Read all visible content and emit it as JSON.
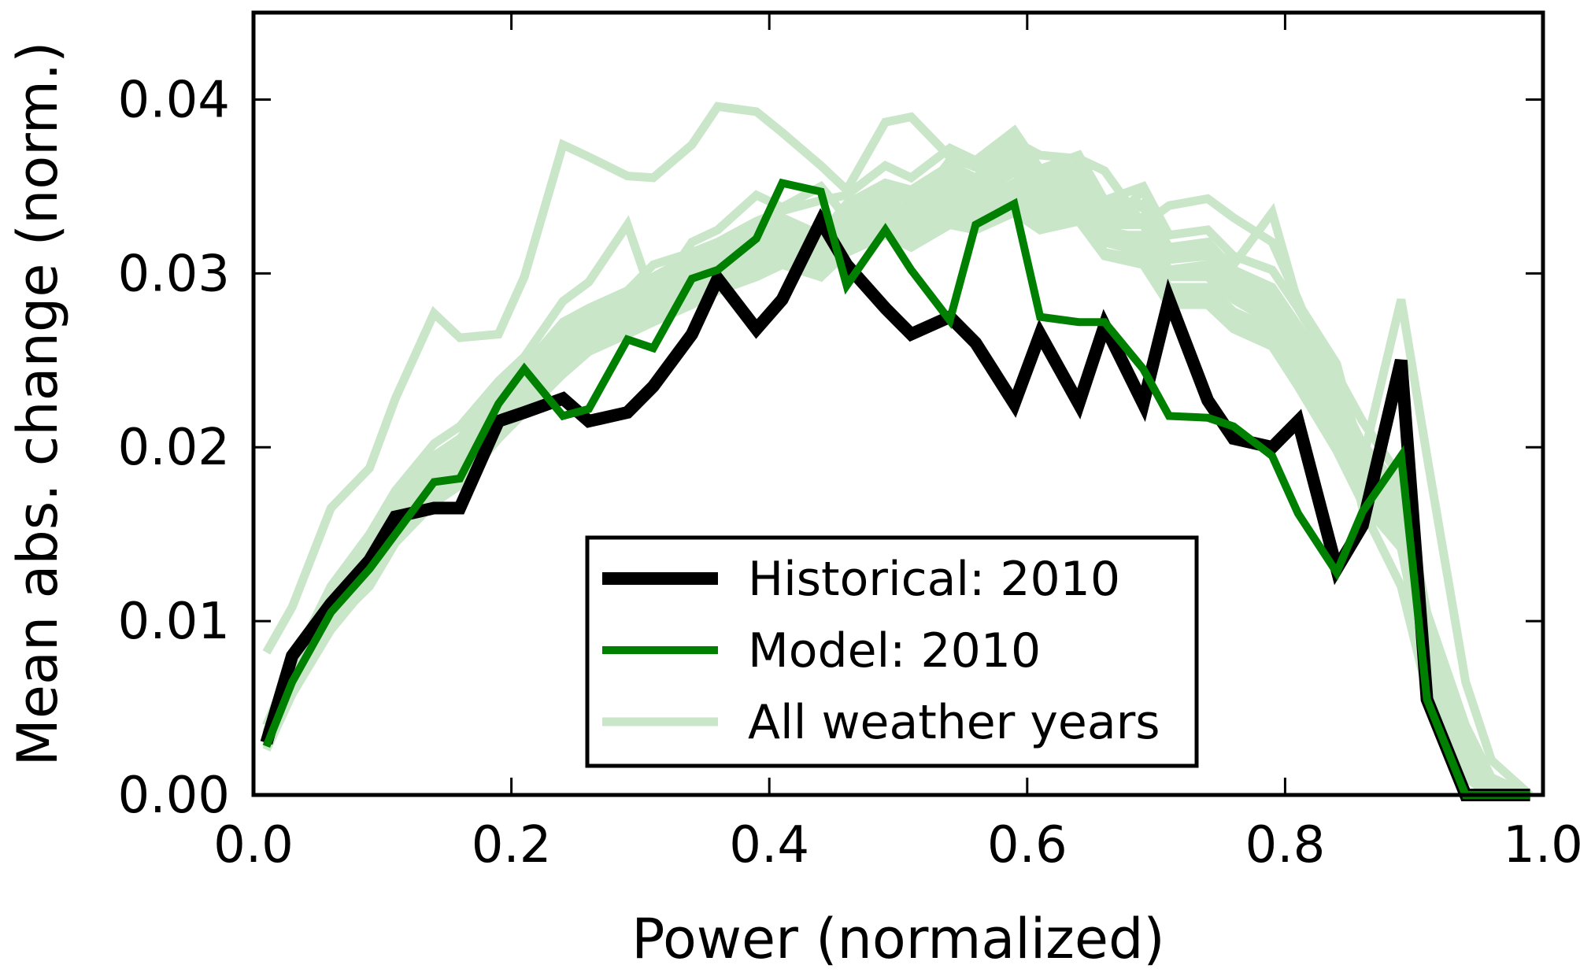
{
  "chart_data": {
    "type": "line",
    "title": "",
    "xlabel": "Power (normalized)",
    "ylabel": "Mean abs. change (norm.)",
    "xlim": [
      0.0,
      1.0
    ],
    "ylim": [
      0.0,
      0.045
    ],
    "xticks": [
      0.0,
      0.2,
      0.4,
      0.6,
      0.8,
      1.0
    ],
    "xtick_labels": [
      "0.0",
      "0.2",
      "0.4",
      "0.6",
      "0.8",
      "1.0"
    ],
    "yticks": [
      0.0,
      0.01,
      0.02,
      0.03,
      0.04
    ],
    "ytick_labels": [
      "0.00",
      "0.01",
      "0.02",
      "0.03",
      "0.04"
    ],
    "grid": false,
    "legend_position": "lower-center",
    "x": [
      0.01,
      0.03,
      0.06,
      0.09,
      0.11,
      0.14,
      0.16,
      0.19,
      0.21,
      0.24,
      0.26,
      0.29,
      0.31,
      0.34,
      0.36,
      0.39,
      0.41,
      0.44,
      0.46,
      0.49,
      0.51,
      0.54,
      0.56,
      0.59,
      0.61,
      0.64,
      0.66,
      0.69,
      0.71,
      0.74,
      0.76,
      0.79,
      0.81,
      0.84,
      0.86,
      0.89,
      0.91,
      0.94,
      0.96,
      0.99
    ],
    "series": [
      {
        "name": "Historical: 2010",
        "color": "#000000",
        "values": [
          0.003,
          0.008,
          0.011,
          0.0135,
          0.016,
          0.0165,
          0.0165,
          0.0215,
          0.022,
          0.0228,
          0.0215,
          0.022,
          0.0235,
          0.0265,
          0.0297,
          0.0268,
          0.0285,
          0.033,
          0.0305,
          0.028,
          0.0265,
          0.0275,
          0.026,
          0.0225,
          0.0265,
          0.0225,
          0.027,
          0.0225,
          0.0285,
          0.0227,
          0.0205,
          0.02,
          0.0215,
          0.013,
          0.0155,
          0.025,
          0.0055,
          0.0,
          0.0,
          0.0
        ]
      },
      {
        "name": "Model: 2010",
        "color": "#008000",
        "values": [
          0.0028,
          0.0065,
          0.0105,
          0.013,
          0.015,
          0.018,
          0.0182,
          0.0225,
          0.0245,
          0.0218,
          0.0222,
          0.0262,
          0.0257,
          0.0297,
          0.0302,
          0.032,
          0.0352,
          0.0347,
          0.0293,
          0.0325,
          0.0302,
          0.0273,
          0.0328,
          0.034,
          0.0275,
          0.0272,
          0.0272,
          0.0245,
          0.0218,
          0.0217,
          0.0212,
          0.0195,
          0.0162,
          0.0128,
          0.0163,
          0.0195,
          0.0055,
          0.0,
          0.0,
          0.0
        ]
      },
      {
        "name": "All weather years",
        "color": "#c9e6c9",
        "style": "background-ensemble",
        "lines": [
          [
            0.0082,
            0.0108,
            0.0165,
            0.0188,
            0.0228,
            0.0277,
            0.0263,
            0.0265,
            0.0298,
            0.0374,
            0.0367,
            0.0356,
            0.0355,
            0.0374,
            0.0396,
            0.0393,
            0.0381,
            0.0362,
            0.0348,
            0.0387,
            0.039,
            0.0367,
            0.0361,
            0.0376,
            0.0368,
            0.0366,
            0.0359,
            0.0328,
            0.0339,
            0.0343,
            0.0332,
            0.0318,
            0.0285,
            0.023,
            0.0165,
            0.012,
            0.006,
            0.001,
            0.0,
            0.0
          ],
          [
            0.004,
            0.0075,
            0.012,
            0.015,
            0.0175,
            0.0202,
            0.0212,
            0.0238,
            0.0252,
            0.0284,
            0.0295,
            0.0328,
            0.0285,
            0.0318,
            0.0325,
            0.0345,
            0.0338,
            0.035,
            0.0332,
            0.0342,
            0.0335,
            0.0365,
            0.0352,
            0.0362,
            0.0348,
            0.0355,
            0.0325,
            0.0348,
            0.031,
            0.0315,
            0.0305,
            0.0335,
            0.0283,
            0.0248,
            0.0192,
            0.0285,
            0.0195,
            0.0065,
            0.002,
            0.0
          ],
          [
            0.0035,
            0.007,
            0.0115,
            0.0142,
            0.0168,
            0.0195,
            0.0205,
            0.0232,
            0.0246,
            0.0272,
            0.028,
            0.029,
            0.0305,
            0.0312,
            0.0318,
            0.033,
            0.0336,
            0.0342,
            0.0345,
            0.0362,
            0.0355,
            0.0372,
            0.0365,
            0.0382,
            0.036,
            0.0368,
            0.0342,
            0.035,
            0.0322,
            0.0325,
            0.031,
            0.0302,
            0.028,
            0.0242,
            0.0215,
            0.0182,
            0.0105,
            0.004,
            0.001,
            0.0
          ],
          [
            0.0032,
            0.0068,
            0.011,
            0.0138,
            0.0162,
            0.0188,
            0.0198,
            0.0225,
            0.024,
            0.0262,
            0.0275,
            0.0285,
            0.0292,
            0.0305,
            0.031,
            0.0322,
            0.0326,
            0.0318,
            0.0335,
            0.0345,
            0.0342,
            0.0355,
            0.0348,
            0.0365,
            0.0352,
            0.0358,
            0.0335,
            0.0332,
            0.0308,
            0.031,
            0.0295,
            0.0285,
            0.0262,
            0.0225,
            0.0195,
            0.0168,
            0.009,
            0.003,
            0.0,
            0.0
          ],
          [
            0.003,
            0.0065,
            0.0105,
            0.0132,
            0.0158,
            0.0182,
            0.0192,
            0.0218,
            0.0232,
            0.0255,
            0.0268,
            0.0278,
            0.0285,
            0.0296,
            0.0302,
            0.0312,
            0.0318,
            0.031,
            0.0325,
            0.0335,
            0.0332,
            0.0345,
            0.034,
            0.0352,
            0.034,
            0.0348,
            0.0325,
            0.032,
            0.0298,
            0.0298,
            0.0285,
            0.0275,
            0.0252,
            0.0215,
            0.0185,
            0.0158,
            0.0082,
            0.0025,
            0.0,
            0.0
          ],
          [
            0.0028,
            0.006,
            0.0098,
            0.0125,
            0.015,
            0.0175,
            0.0185,
            0.021,
            0.0225,
            0.0248,
            0.026,
            0.027,
            0.0278,
            0.0288,
            0.0295,
            0.0302,
            0.031,
            0.0302,
            0.0318,
            0.0328,
            0.0322,
            0.0335,
            0.0332,
            0.0342,
            0.0332,
            0.0338,
            0.0318,
            0.0312,
            0.029,
            0.0288,
            0.0275,
            0.0265,
            0.0242,
            0.0205,
            0.0175,
            0.0148,
            0.0075,
            0.002,
            0.0,
            0.0
          ],
          [
            0.0026,
            0.0058,
            0.0095,
            0.0122,
            0.0148,
            0.0172,
            0.0182,
            0.0205,
            0.022,
            0.0242,
            0.0255,
            0.0265,
            0.0272,
            0.0282,
            0.029,
            0.0298,
            0.0305,
            0.0298,
            0.0312,
            0.0322,
            0.0315,
            0.0328,
            0.0325,
            0.0335,
            0.0325,
            0.033,
            0.031,
            0.0305,
            0.0282,
            0.0282,
            0.0268,
            0.0258,
            0.0235,
            0.0198,
            0.0168,
            0.0142,
            0.007,
            0.0018,
            0.0,
            0.0
          ],
          [
            0.0036,
            0.0072,
            0.0112,
            0.014,
            0.0165,
            0.019,
            0.02,
            0.0228,
            0.0242,
            0.0268,
            0.0278,
            0.0288,
            0.0298,
            0.031,
            0.0315,
            0.0326,
            0.0332,
            0.0322,
            0.034,
            0.0352,
            0.0348,
            0.0362,
            0.0355,
            0.0372,
            0.0358,
            0.0362,
            0.034,
            0.034,
            0.0315,
            0.0318,
            0.0302,
            0.0292,
            0.027,
            0.0232,
            0.0202,
            0.0175,
            0.0098,
            0.0035,
            0.0005,
            0.0
          ],
          [
            0.0029,
            0.0062,
            0.01,
            0.0128,
            0.0152,
            0.0178,
            0.0188,
            0.0212,
            0.0228,
            0.0252,
            0.0262,
            0.0272,
            0.028,
            0.0292,
            0.0298,
            0.0308,
            0.0315,
            0.0305,
            0.0322,
            0.033,
            0.0325,
            0.034,
            0.0335,
            0.0348,
            0.0335,
            0.0342,
            0.0322,
            0.0315,
            0.0292,
            0.0292,
            0.0278,
            0.0268,
            0.0245,
            0.0208,
            0.0178,
            0.0152,
            0.0078,
            0.0022,
            0.0,
            0.0
          ],
          [
            0.0033,
            0.0066,
            0.0108,
            0.0135,
            0.016,
            0.0185,
            0.0195,
            0.022,
            0.0235,
            0.0258,
            0.0272,
            0.0282,
            0.0288,
            0.0302,
            0.0306,
            0.0318,
            0.0322,
            0.0315,
            0.033,
            0.0338,
            0.0338,
            0.0348,
            0.0345,
            0.0358,
            0.0345,
            0.0352,
            0.0328,
            0.0328,
            0.0302,
            0.0305,
            0.029,
            0.028,
            0.0258,
            0.022,
            0.019,
            0.0162,
            0.0085,
            0.0028,
            0.0,
            0.0
          ],
          [
            0.0031,
            0.0064,
            0.0102,
            0.013,
            0.0155,
            0.018,
            0.019,
            0.0215,
            0.023,
            0.0255,
            0.0265,
            0.0275,
            0.0282,
            0.0298,
            0.0302,
            0.0315,
            0.032,
            0.0312,
            0.0328,
            0.0332,
            0.033,
            0.0342,
            0.034,
            0.0352,
            0.034,
            0.0345,
            0.0322,
            0.0322,
            0.0298,
            0.03,
            0.0285,
            0.0272,
            0.025,
            0.0212,
            0.0182,
            0.0155,
            0.0078,
            0.0022,
            0.0,
            0.0
          ],
          [
            0.0034,
            0.0068,
            0.011,
            0.0138,
            0.0162,
            0.0188,
            0.0198,
            0.0222,
            0.0238,
            0.0262,
            0.0272,
            0.0282,
            0.0292,
            0.0305,
            0.0308,
            0.032,
            0.0326,
            0.0318,
            0.0335,
            0.0345,
            0.0342,
            0.0352,
            0.0348,
            0.0365,
            0.035,
            0.0355,
            0.0332,
            0.0332,
            0.0308,
            0.031,
            0.0295,
            0.0285,
            0.026,
            0.0222,
            0.0192,
            0.0165,
            0.009,
            0.003,
            0.0,
            0.0
          ],
          [
            0.003,
            0.006,
            0.0098,
            0.012,
            0.0145,
            0.0168,
            0.0178,
            0.0205,
            0.022,
            0.0245,
            0.0255,
            0.0268,
            0.0275,
            0.0285,
            0.0292,
            0.03,
            0.0306,
            0.0298,
            0.0315,
            0.0325,
            0.0318,
            0.033,
            0.0328,
            0.034,
            0.0328,
            0.0335,
            0.0312,
            0.0308,
            0.0285,
            0.0285,
            0.0272,
            0.0262,
            0.0238,
            0.0202,
            0.0172,
            0.0145,
            0.0072,
            0.002,
            0.0,
            0.0
          ],
          [
            0.0035,
            0.0072,
            0.0112,
            0.0142,
            0.0168,
            0.0192,
            0.0202,
            0.0228,
            0.0242,
            0.0266,
            0.0278,
            0.0288,
            0.0295,
            0.0308,
            0.0312,
            0.0325,
            0.033,
            0.0322,
            0.0338,
            0.0348,
            0.0345,
            0.0358,
            0.0352,
            0.0368,
            0.0355,
            0.036,
            0.0338,
            0.0338,
            0.0312,
            0.0315,
            0.03,
            0.029,
            0.0265,
            0.0228,
            0.0198,
            0.017,
            0.0095,
            0.0032,
            0.0,
            0.0
          ],
          [
            0.0033,
            0.0064,
            0.0102,
            0.0128,
            0.015,
            0.0172,
            0.0182,
            0.021,
            0.0225,
            0.0248,
            0.026,
            0.027,
            0.0278,
            0.029,
            0.0295,
            0.0305,
            0.031,
            0.0302,
            0.0318,
            0.0328,
            0.0322,
            0.0335,
            0.0332,
            0.0345,
            0.0332,
            0.034,
            0.0318,
            0.0312,
            0.029,
            0.029,
            0.0278,
            0.0268,
            0.0245,
            0.0208,
            0.0178,
            0.015,
            0.0075,
            0.0022,
            0.0,
            0.0
          ]
        ]
      }
    ],
    "legend": [
      "Historical: 2010",
      "Model: 2010",
      "All weather years"
    ]
  }
}
